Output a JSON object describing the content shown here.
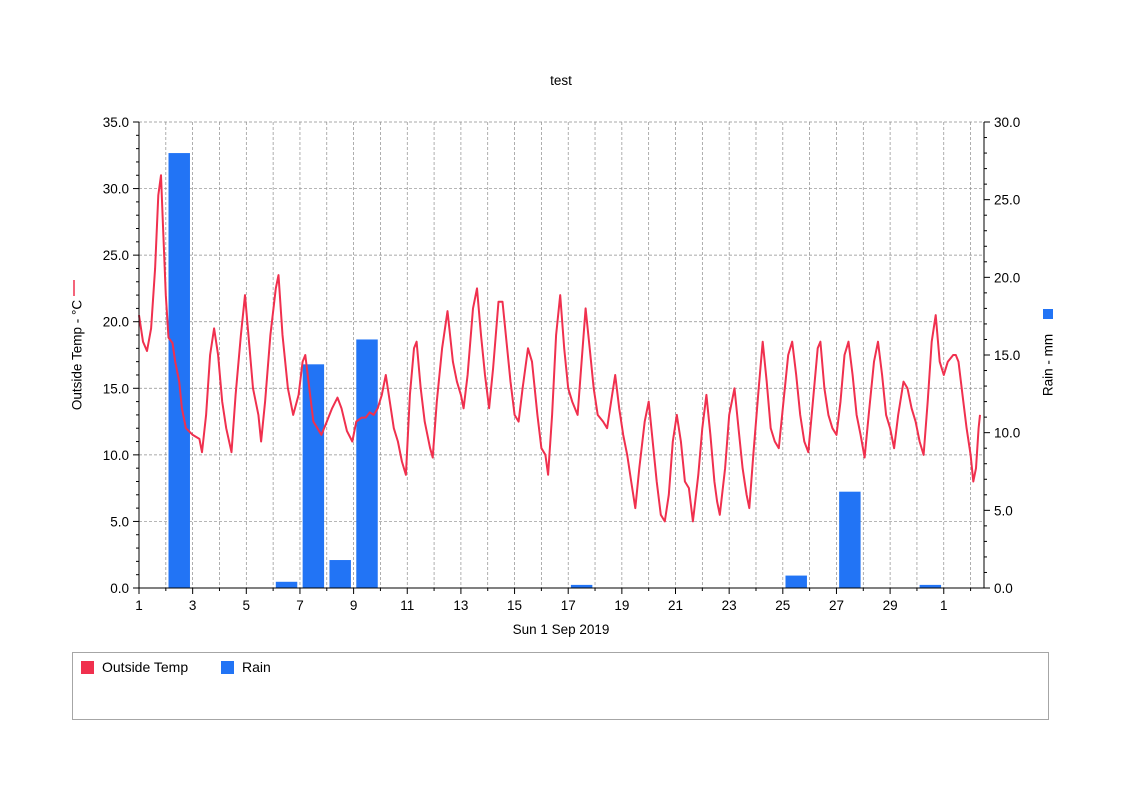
{
  "chart_data": {
    "type": "bar+line",
    "title": "test",
    "xlabel": "Sun 1 Sep 2019",
    "x_tick_labels": [
      "1",
      "3",
      "5",
      "7",
      "9",
      "11",
      "13",
      "15",
      "17",
      "19",
      "21",
      "23",
      "25",
      "27",
      "29",
      "1"
    ],
    "x_range_days": [
      0,
      31.5
    ],
    "y_left": {
      "label": "Outside Temp - °C",
      "ylim": [
        0,
        35
      ],
      "ticks": [
        "0.0",
        "5.0",
        "10.0",
        "15.0",
        "20.0",
        "25.0",
        "30.0",
        "35.0"
      ]
    },
    "y_right": {
      "label": "Rain - mm",
      "ylim": [
        0,
        30
      ],
      "ticks": [
        "0.0",
        "5.0",
        "10.0",
        "15.0",
        "20.0",
        "25.0",
        "30.0"
      ]
    },
    "grid": true,
    "legend_placement": "bottom",
    "series": [
      {
        "name": "Outside Temp",
        "type": "line",
        "axis": "left",
        "color": "#f0304e",
        "points": [
          [
            0.0,
            20.5
          ],
          [
            0.15,
            18.5
          ],
          [
            0.3,
            17.8
          ],
          [
            0.45,
            19.5
          ],
          [
            0.6,
            24.0
          ],
          [
            0.72,
            29.5
          ],
          [
            0.82,
            31.0
          ],
          [
            0.9,
            27.0
          ],
          [
            1.0,
            22.0
          ],
          [
            1.1,
            18.8
          ],
          [
            1.25,
            18.4
          ],
          [
            1.35,
            17.0
          ],
          [
            1.5,
            15.5
          ],
          [
            1.6,
            13.5
          ],
          [
            1.75,
            12.0
          ],
          [
            2.0,
            11.5
          ],
          [
            2.25,
            11.2
          ],
          [
            2.35,
            10.2
          ],
          [
            2.5,
            13.0
          ],
          [
            2.65,
            17.5
          ],
          [
            2.8,
            19.5
          ],
          [
            2.95,
            17.5
          ],
          [
            3.1,
            14.0
          ],
          [
            3.25,
            12.0
          ],
          [
            3.45,
            10.2
          ],
          [
            3.6,
            14.5
          ],
          [
            3.8,
            19.0
          ],
          [
            3.95,
            22.0
          ],
          [
            4.1,
            18.5
          ],
          [
            4.25,
            15.0
          ],
          [
            4.45,
            13.0
          ],
          [
            4.55,
            11.0
          ],
          [
            4.7,
            14.0
          ],
          [
            4.9,
            19.0
          ],
          [
            5.1,
            22.5
          ],
          [
            5.2,
            23.5
          ],
          [
            5.35,
            19.0
          ],
          [
            5.55,
            15.0
          ],
          [
            5.75,
            13.0
          ],
          [
            5.95,
            14.5
          ],
          [
            6.1,
            17.0
          ],
          [
            6.2,
            17.5
          ],
          [
            6.35,
            15.0
          ],
          [
            6.5,
            12.5
          ],
          [
            6.65,
            12.0
          ],
          [
            6.8,
            11.5
          ],
          [
            7.0,
            12.5
          ],
          [
            7.2,
            13.5
          ],
          [
            7.4,
            14.3
          ],
          [
            7.55,
            13.5
          ],
          [
            7.75,
            11.8
          ],
          [
            7.95,
            11.0
          ],
          [
            8.1,
            12.5
          ],
          [
            8.3,
            12.8
          ],
          [
            8.45,
            12.8
          ],
          [
            8.6,
            13.2
          ],
          [
            8.75,
            13.0
          ],
          [
            8.9,
            13.5
          ],
          [
            9.05,
            14.5
          ],
          [
            9.2,
            16.0
          ],
          [
            9.35,
            14.0
          ],
          [
            9.5,
            12.0
          ],
          [
            9.65,
            11.0
          ],
          [
            9.8,
            9.5
          ],
          [
            9.95,
            8.5
          ],
          [
            10.1,
            14.5
          ],
          [
            10.25,
            18.0
          ],
          [
            10.35,
            18.5
          ],
          [
            10.5,
            15.0
          ],
          [
            10.65,
            12.5
          ],
          [
            10.85,
            10.5
          ],
          [
            10.95,
            9.8
          ],
          [
            11.1,
            14.0
          ],
          [
            11.3,
            18.0
          ],
          [
            11.5,
            20.8
          ],
          [
            11.7,
            17.0
          ],
          [
            11.85,
            15.5
          ],
          [
            12.0,
            14.5
          ],
          [
            12.1,
            13.5
          ],
          [
            12.25,
            16.0
          ],
          [
            12.45,
            21.0
          ],
          [
            12.6,
            22.5
          ],
          [
            12.75,
            19.0
          ],
          [
            12.9,
            16.0
          ],
          [
            13.05,
            13.5
          ],
          [
            13.2,
            16.5
          ],
          [
            13.4,
            21.5
          ],
          [
            13.55,
            21.5
          ],
          [
            13.7,
            18.5
          ],
          [
            13.85,
            15.5
          ],
          [
            14.0,
            13.0
          ],
          [
            14.15,
            12.5
          ],
          [
            14.3,
            15.0
          ],
          [
            14.5,
            18.0
          ],
          [
            14.65,
            17.0
          ],
          [
            14.85,
            13.0
          ],
          [
            15.0,
            10.5
          ],
          [
            15.15,
            10.0
          ],
          [
            15.25,
            8.5
          ],
          [
            15.4,
            13.0
          ],
          [
            15.55,
            19.0
          ],
          [
            15.7,
            22.0
          ],
          [
            15.85,
            18.0
          ],
          [
            16.0,
            15.0
          ],
          [
            16.15,
            14.0
          ],
          [
            16.35,
            13.0
          ],
          [
            16.5,
            17.0
          ],
          [
            16.65,
            21.0
          ],
          [
            16.8,
            18.0
          ],
          [
            16.95,
            15.0
          ],
          [
            17.1,
            13.0
          ],
          [
            17.3,
            12.5
          ],
          [
            17.45,
            12.0
          ],
          [
            17.6,
            14.0
          ],
          [
            17.75,
            16.0
          ],
          [
            17.9,
            13.5
          ],
          [
            18.05,
            11.5
          ],
          [
            18.2,
            10.0
          ],
          [
            18.35,
            8.0
          ],
          [
            18.5,
            6.0
          ],
          [
            18.65,
            9.0
          ],
          [
            18.85,
            12.5
          ],
          [
            19.0,
            14.0
          ],
          [
            19.15,
            11.0
          ],
          [
            19.3,
            8.0
          ],
          [
            19.45,
            5.5
          ],
          [
            19.6,
            5.0
          ],
          [
            19.75,
            7.0
          ],
          [
            19.9,
            11.0
          ],
          [
            20.05,
            13.0
          ],
          [
            20.2,
            11.0
          ],
          [
            20.35,
            8.0
          ],
          [
            20.5,
            7.5
          ],
          [
            20.65,
            5.0
          ],
          [
            20.85,
            8.5
          ],
          [
            21.0,
            12.0
          ],
          [
            21.15,
            14.5
          ],
          [
            21.3,
            11.5
          ],
          [
            21.45,
            8.0
          ],
          [
            21.55,
            6.5
          ],
          [
            21.65,
            5.5
          ],
          [
            21.85,
            9.0
          ],
          [
            22.0,
            13.0
          ],
          [
            22.2,
            15.0
          ],
          [
            22.35,
            12.0
          ],
          [
            22.5,
            9.0
          ],
          [
            22.65,
            7.0
          ],
          [
            22.75,
            6.0
          ],
          [
            22.9,
            10.0
          ],
          [
            23.1,
            15.0
          ],
          [
            23.25,
            18.5
          ],
          [
            23.4,
            15.5
          ],
          [
            23.55,
            12.0
          ],
          [
            23.7,
            11.0
          ],
          [
            23.85,
            10.5
          ],
          [
            24.0,
            13.5
          ],
          [
            24.2,
            17.5
          ],
          [
            24.35,
            18.5
          ],
          [
            24.5,
            16.0
          ],
          [
            24.65,
            13.0
          ],
          [
            24.8,
            11.0
          ],
          [
            24.95,
            10.2
          ],
          [
            25.1,
            13.5
          ],
          [
            25.3,
            18.0
          ],
          [
            25.4,
            18.5
          ],
          [
            25.55,
            15.0
          ],
          [
            25.7,
            13.0
          ],
          [
            25.85,
            12.0
          ],
          [
            26.0,
            11.5
          ],
          [
            26.15,
            14.0
          ],
          [
            26.3,
            17.5
          ],
          [
            26.45,
            18.5
          ],
          [
            26.6,
            16.0
          ],
          [
            26.75,
            13.0
          ],
          [
            26.9,
            11.5
          ],
          [
            27.05,
            9.8
          ],
          [
            27.2,
            13.0
          ],
          [
            27.4,
            17.0
          ],
          [
            27.55,
            18.5
          ],
          [
            27.7,
            16.0
          ],
          [
            27.85,
            13.0
          ],
          [
            28.0,
            12.0
          ],
          [
            28.15,
            10.5
          ],
          [
            28.3,
            13.0
          ],
          [
            28.5,
            15.5
          ],
          [
            28.65,
            15.0
          ],
          [
            28.8,
            13.5
          ],
          [
            28.95,
            12.5
          ],
          [
            29.1,
            11.0
          ],
          [
            29.25,
            10.0
          ],
          [
            29.4,
            14.0
          ],
          [
            29.55,
            18.5
          ],
          [
            29.7,
            20.5
          ],
          [
            29.85,
            17.0
          ],
          [
            30.0,
            16.0
          ],
          [
            30.15,
            17.0
          ],
          [
            30.35,
            17.5
          ],
          [
            30.45,
            17.5
          ],
          [
            30.55,
            17.0
          ],
          [
            30.7,
            14.5
          ],
          [
            30.85,
            12.0
          ],
          [
            31.0,
            10.0
          ],
          [
            31.1,
            8.0
          ],
          [
            31.2,
            9.0
          ],
          [
            31.3,
            12.0
          ],
          [
            31.35,
            13.0
          ]
        ]
      },
      {
        "name": "Rain",
        "type": "bar",
        "axis": "right",
        "color": "#2274f5",
        "bar_width_days": 0.8,
        "bars": [
          {
            "x": 1.5,
            "value": 28.0
          },
          {
            "x": 5.5,
            "value": 0.4
          },
          {
            "x": 6.5,
            "value": 14.4
          },
          {
            "x": 7.5,
            "value": 1.8
          },
          {
            "x": 8.5,
            "value": 16.0
          },
          {
            "x": 16.5,
            "value": 0.2
          },
          {
            "x": 24.5,
            "value": 0.8
          },
          {
            "x": 26.5,
            "value": 6.2
          },
          {
            "x": 29.5,
            "value": 0.2
          }
        ]
      }
    ]
  },
  "legend": [
    {
      "label": "Outside Temp",
      "color": "#f0304e"
    },
    {
      "label": "Rain",
      "color": "#2274f5"
    }
  ]
}
